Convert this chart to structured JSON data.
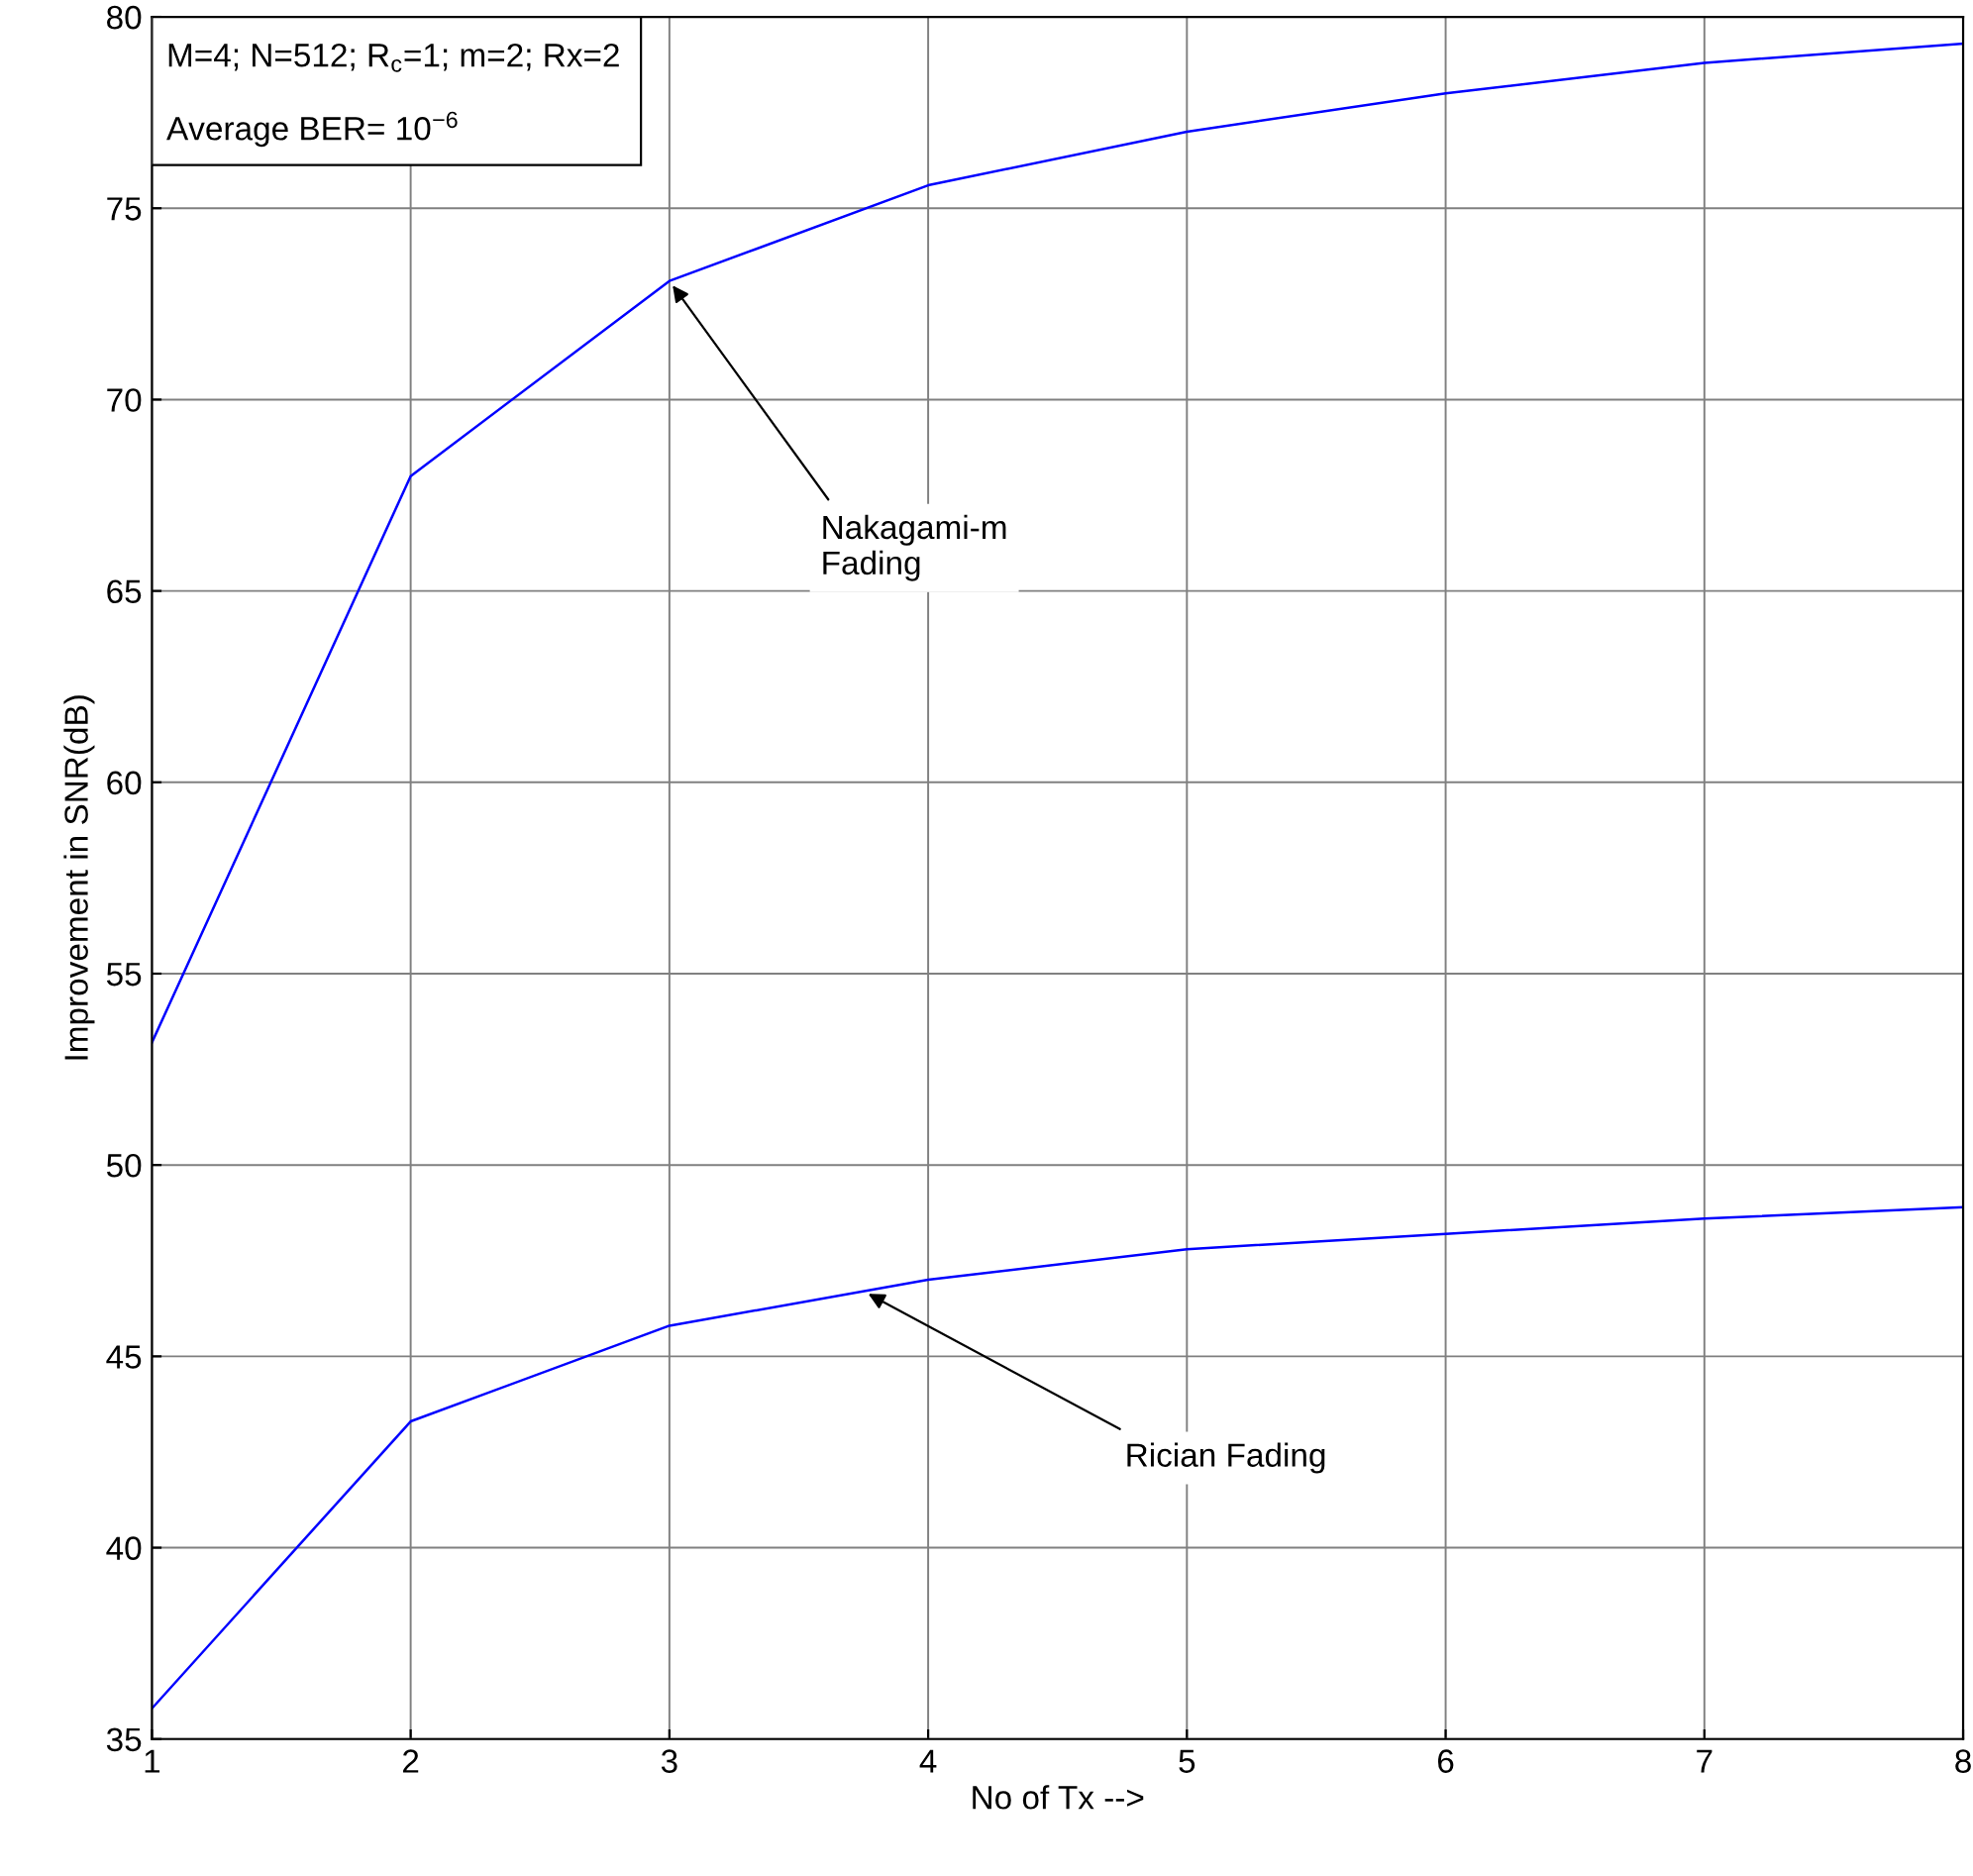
{
  "chart_data": {
    "type": "line",
    "xlabel": "No of Tx -->",
    "ylabel": "Improvement in SNR(dB)",
    "x": [
      1,
      2,
      3,
      4,
      5,
      6,
      7,
      8
    ],
    "series": [
      {
        "color": "#0000ff",
        "values": [
          53.2,
          68.0,
          73.1,
          75.6,
          77.0,
          78.0,
          78.8,
          79.3
        ]
      },
      {
        "color": "#0000ff",
        "values": [
          35.8,
          43.3,
          45.8,
          47.0,
          47.8,
          48.2,
          48.6,
          48.9
        ]
      }
    ],
    "xlim": [
      1,
      8
    ],
    "ylim": [
      35,
      80
    ],
    "xticks": [
      1,
      2,
      3,
      4,
      5,
      6,
      7,
      8
    ],
    "yticks": [
      35,
      40,
      45,
      50,
      55,
      60,
      65,
      70,
      75,
      80
    ],
    "grid": true,
    "marker": "none",
    "line_style": "solid",
    "annotations": [
      "M=4; N=512; R$_{c}$=1; m=2; Rx=2",
      "Average BER= 10$^{−6}$",
      {
        "text": "Nakagami-m\nFading",
        "x": 3,
        "y": 73.1
      },
      {
        "text": "Rician Fading",
        "x": 3.75,
        "y": 46.7
      }
    ]
  }
}
